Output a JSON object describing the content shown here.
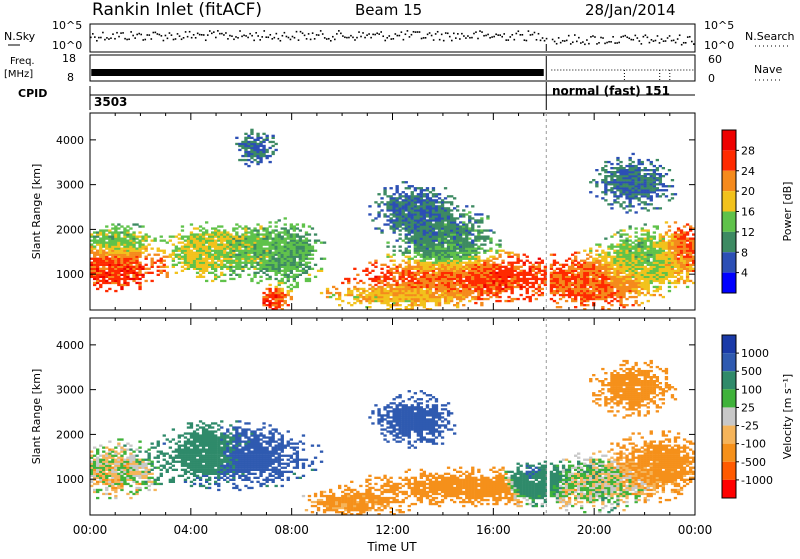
{
  "header": {
    "station": "Rankin Inlet (fitACF)",
    "beam": "Beam 15",
    "date": "28/Jan/2014"
  },
  "strips": {
    "nsky_label": "N.Sky",
    "nsky_ticks": [
      "10^5",
      "10^0"
    ],
    "nsearch_label": "N.Search",
    "freq_label_1": "Freq.",
    "freq_label_2": "[MHz]",
    "freq_ticks": [
      "18",
      "8"
    ],
    "nave_ticks": [
      "60",
      "0"
    ],
    "nave_label": "Nave",
    "cpid_label": "CPID",
    "cpid_first": "3503",
    "cpid_second": "normal (fast) 151"
  },
  "chart_data": [
    {
      "type": "heatmap",
      "name": "power",
      "ylabel": "Slant Range [km]",
      "ylim": [
        200,
        4600
      ],
      "yticks": [
        "4000",
        "3000",
        "2000",
        "1000"
      ],
      "colorbar_label": "Power [dB]",
      "colorbar_ticks": [
        "28",
        "24",
        "20",
        "16",
        "12",
        "8",
        "4"
      ],
      "colors": [
        "#0000ff",
        "#2c4fb5",
        "#3d8a62",
        "#5fc24a",
        "#f2c21c",
        "#f58a1c",
        "#ff2a00",
        "#ee0000"
      ],
      "blobs": [
        {
          "t": 0.9,
          "r": 1150,
          "st": 1.0,
          "sr": 250,
          "v": 26
        },
        {
          "t": 1.0,
          "r": 1700,
          "st": 0.7,
          "sr": 200,
          "v": 14
        },
        {
          "t": 4.4,
          "r": 1500,
          "st": 0.5,
          "sr": 250,
          "v": 18
        },
        {
          "t": 5.8,
          "r": 1500,
          "st": 1.4,
          "sr": 300,
          "v": 14
        },
        {
          "t": 7.8,
          "r": 1400,
          "st": 0.6,
          "sr": 350,
          "v": 12
        },
        {
          "t": 7.2,
          "r": 420,
          "st": 0.3,
          "sr": 150,
          "v": 26
        },
        {
          "t": 12.5,
          "r": 500,
          "st": 1.5,
          "sr": 150,
          "v": 18
        },
        {
          "t": 15.0,
          "r": 900,
          "st": 2.2,
          "sr": 250,
          "v": 26
        },
        {
          "t": 14.0,
          "r": 1700,
          "st": 1.0,
          "sr": 400,
          "v": 10
        },
        {
          "t": 12.8,
          "r": 2400,
          "st": 0.8,
          "sr": 300,
          "v": 8
        },
        {
          "t": 20.0,
          "r": 800,
          "st": 1.2,
          "sr": 300,
          "v": 24
        },
        {
          "t": 22.0,
          "r": 1300,
          "st": 1.0,
          "sr": 350,
          "v": 14
        },
        {
          "t": 23.5,
          "r": 1500,
          "st": 0.5,
          "sr": 300,
          "v": 26
        },
        {
          "t": 21.5,
          "r": 3000,
          "st": 0.8,
          "sr": 300,
          "v": 8
        },
        {
          "t": 6.5,
          "r": 3800,
          "st": 0.4,
          "sr": 200,
          "v": 8
        }
      ]
    },
    {
      "type": "heatmap",
      "name": "velocity",
      "ylabel": "Slant Range [km]",
      "ylim": [
        200,
        4600
      ],
      "yticks": [
        "4000",
        "3000",
        "2000",
        "1000"
      ],
      "colorbar_label": "Velocity [m s⁻¹]",
      "colorbar_ticks": [
        "1000",
        "500",
        "100",
        "25",
        "-25",
        "-100",
        "-500",
        "-1000"
      ],
      "colors": [
        "#ff0000",
        "#ff5a00",
        "#f5901a",
        "#f5b45a",
        "#c8c8c8",
        "#3fb23a",
        "#2f8a6a",
        "#2f5ab0",
        "#1a3aa8"
      ],
      "blobs": [
        {
          "t": 0.9,
          "r": 1200,
          "st": 1.0,
          "sr": 300,
          "v": -20
        },
        {
          "t": 5.8,
          "r": 1500,
          "st": 1.5,
          "sr": 350,
          "v": 600
        },
        {
          "t": 4.5,
          "r": 1600,
          "st": 0.6,
          "sr": 300,
          "v": 150
        },
        {
          "t": 15.0,
          "r": 800,
          "st": 2.2,
          "sr": 200,
          "v": -400
        },
        {
          "t": 12.8,
          "r": 2300,
          "st": 0.8,
          "sr": 300,
          "v": 700
        },
        {
          "t": 17.5,
          "r": 900,
          "st": 0.6,
          "sr": 200,
          "v": 800
        },
        {
          "t": 20.0,
          "r": 900,
          "st": 1.2,
          "sr": 300,
          "v": 50
        },
        {
          "t": 22.5,
          "r": 1300,
          "st": 1.0,
          "sr": 350,
          "v": -200
        },
        {
          "t": 21.5,
          "r": 3000,
          "st": 0.8,
          "sr": 300,
          "v": -300
        },
        {
          "t": 10.5,
          "r": 450,
          "st": 1.0,
          "sr": 150,
          "v": -150
        }
      ]
    }
  ],
  "xaxis": {
    "label": "Time UT",
    "ticks": [
      "00:00",
      "04:00",
      "08:00",
      "12:00",
      "16:00",
      "20:00",
      "00:00"
    ]
  }
}
